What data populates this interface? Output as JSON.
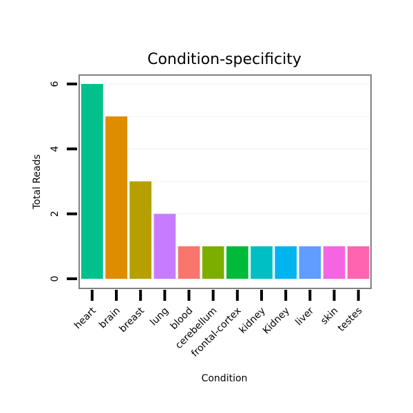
{
  "chart_data": {
    "type": "bar",
    "title": "Condition-specificity",
    "xlabel": "Condition",
    "ylabel": "Total Reads",
    "categories": [
      "heart",
      "brain",
      "breast",
      "lung",
      "blood",
      "cerebellum",
      "frontal-cortex",
      "kidney",
      "Kidney",
      "liver",
      "skin",
      "testes"
    ],
    "values": [
      6,
      5,
      3,
      2,
      1,
      1,
      1,
      1,
      1,
      1,
      1,
      1
    ],
    "colors": [
      "#00C08B",
      "#DE8C00",
      "#B79F00",
      "#C77CFF",
      "#F8766D",
      "#7CAE00",
      "#00BA38",
      "#00BFC4",
      "#00B4F0",
      "#619CFF",
      "#F564E3",
      "#FF64B0"
    ],
    "ylim": [
      -0.001,
      6.3
    ],
    "yticks": [
      0,
      2,
      4,
      6
    ],
    "grid": true,
    "legend": "none"
  }
}
